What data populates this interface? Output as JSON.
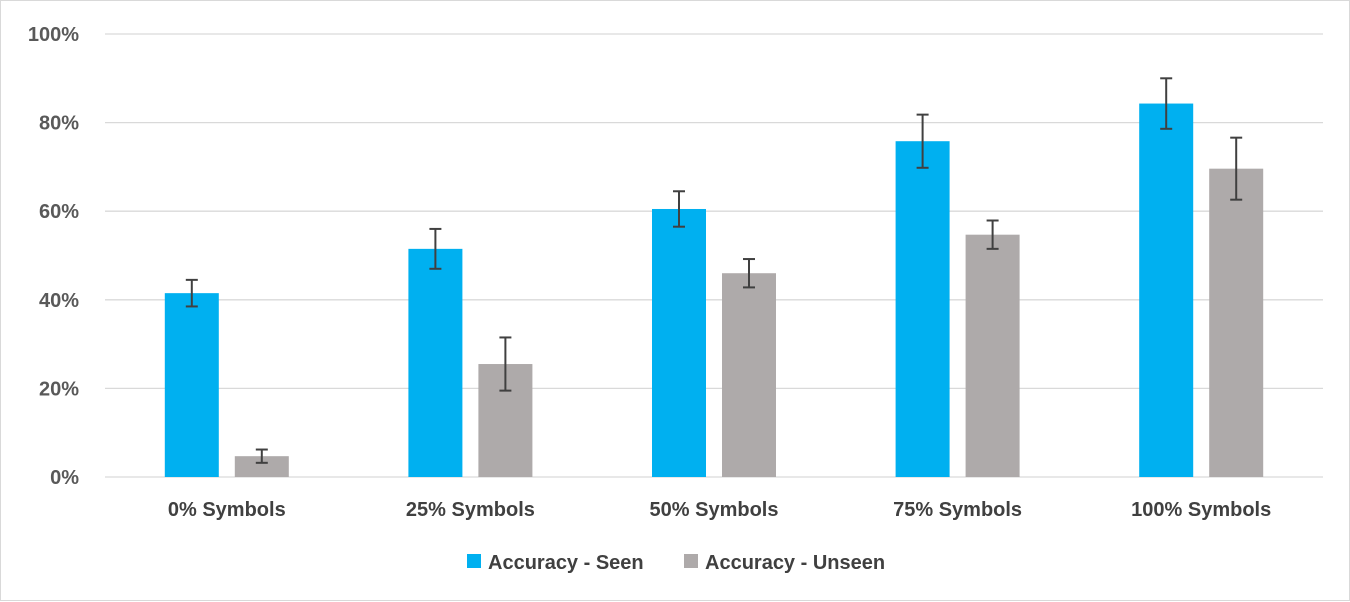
{
  "chart_data": {
    "type": "bar",
    "categories": [
      "0% Symbols",
      "25% Symbols",
      "50% Symbols",
      "75% Symbols",
      "100% Symbols"
    ],
    "series": [
      {
        "name": "Accuracy - Seen",
        "color": "#00b0f0",
        "values": [
          41.5,
          51.5,
          60.5,
          75.8,
          84.3
        ],
        "error": [
          3.0,
          4.5,
          4.0,
          6.0,
          5.7
        ]
      },
      {
        "name": "Accuracy - Unseen",
        "color": "#aeaaaa",
        "values": [
          4.7,
          25.5,
          46.0,
          54.7,
          69.6
        ],
        "error": [
          1.5,
          6.0,
          3.2,
          3.2,
          7.0
        ]
      }
    ],
    "yticks": [
      "0%",
      "20%",
      "40%",
      "60%",
      "80%",
      "100%"
    ],
    "ylim": [
      0,
      100
    ],
    "grid": true,
    "legend_position": "bottom",
    "gridline_color": "#d9d9d9",
    "error_bar_color": "#404040"
  }
}
